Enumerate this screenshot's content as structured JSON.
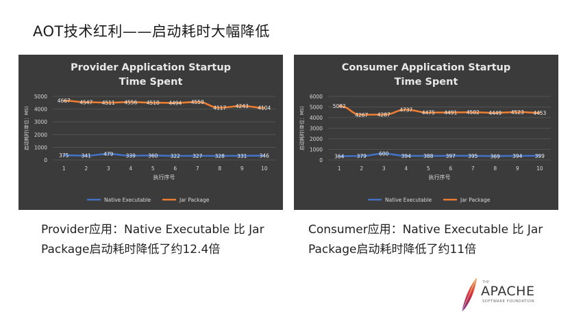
{
  "slide": {
    "title": "AOT技术红利——启动耗时大幅降低",
    "captions": [
      "Provider应用：Native Executable 比 Jar Package启动耗时降低了约12.4倍",
      "Consumer应用：Native Executable 比 Jar Package启动耗时降低了约11倍"
    ]
  },
  "logo": {
    "small_text": "THE",
    "name": "APACHE",
    "sub": "SOFTWARE FOUNDATION"
  },
  "colors": {
    "native": "#4472c4",
    "jar": "#ed7d31",
    "panel_bg": "#3b3b3b",
    "grid": "#5a5a5a",
    "text": "#d9d9d9"
  },
  "chart_data": [
    {
      "type": "line",
      "title_lines": [
        "Provider Application Startup",
        "Time Spent"
      ],
      "xlabel": "执行序号",
      "ylabel": "启动耗时(单位：MS)",
      "x": [
        1,
        2,
        3,
        4,
        5,
        6,
        7,
        8,
        9,
        10
      ],
      "ylim": [
        0,
        5000
      ],
      "yticks": [
        0,
        1000,
        2000,
        3000,
        4000,
        5000
      ],
      "grid": true,
      "legend": "bottom",
      "series": [
        {
          "name": "Native Executable",
          "values": [
            375,
            341,
            479,
            339,
            360,
            322,
            327,
            328,
            331,
            346
          ]
        },
        {
          "name": "Jar Package",
          "values": [
            4667,
            4547,
            4511,
            4556,
            4510,
            4494,
            4559,
            4117,
            4243,
            4104
          ]
        }
      ]
    },
    {
      "type": "line",
      "title_lines": [
        "Consumer Application Startup",
        "Time Spent"
      ],
      "xlabel": "执行序号",
      "ylabel": "启动耗时(单位：MS)",
      "x": [
        1,
        2,
        3,
        4,
        5,
        6,
        7,
        8,
        9,
        10
      ],
      "ylim": [
        0,
        6000
      ],
      "yticks": [
        0,
        1000,
        2000,
        3000,
        4000,
        5000,
        6000
      ],
      "grid": true,
      "legend": "bottom",
      "series": [
        {
          "name": "Native Executable",
          "values": [
            364,
            379,
            600,
            394,
            388,
            397,
            395,
            369,
            394,
            399
          ]
        },
        {
          "name": "Jar Package",
          "values": [
            5082,
            4267,
            4287,
            4737,
            4475,
            4491,
            4502,
            4449,
            4523,
            4453
          ]
        }
      ]
    }
  ]
}
